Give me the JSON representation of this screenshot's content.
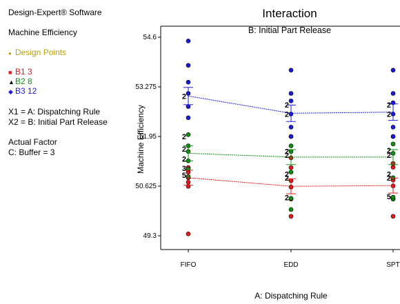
{
  "sidebar": {
    "software": "Design-Expert® Software",
    "response": "Machine Efficiency",
    "design_points_label": "Design Points",
    "design_points_color": "#b8a000",
    "legend": [
      {
        "label": "B1 3",
        "color": "#e8171b",
        "marker": "■"
      },
      {
        "label": "B2 8",
        "color": "#109010",
        "marker": "▲"
      },
      {
        "label": "B3 12",
        "color": "#1a1ae0",
        "marker": "◆"
      }
    ],
    "x1": "X1 = A: Dispatching Rule",
    "x2": "X2 = B: Initial Part Release",
    "actual_factor_title": "Actual Factor",
    "actual_factor_value": "C: Buffer = 3"
  },
  "chart_data": {
    "type": "line",
    "title": "Interaction",
    "subtitle": "B: Initial Part Release",
    "xlabel": "A: Dispatching Rule",
    "ylabel": "Machine Efficiency",
    "categories": [
      "FIFO",
      "EDD",
      "SPT"
    ],
    "yticks": [
      "49.3",
      "50.625",
      "51.95",
      "53.275",
      "54.6"
    ],
    "ylim": [
      49.0,
      55.0
    ],
    "series": [
      {
        "name": "B1 3",
        "color": "#e8171b",
        "values": [
          50.85,
          50.62,
          50.64
        ],
        "lsd_low": [
          50.65,
          50.42,
          50.44
        ],
        "lsd_high": [
          51.05,
          50.82,
          50.84
        ],
        "points": [
          [
            50.62,
            50.73,
            50.85,
            51.0,
            51.12,
            49.35
          ],
          [
            50.6,
            50.77,
            51.12,
            51.38,
            50.28,
            49.82
          ],
          [
            50.63,
            50.79,
            51.13,
            51.23,
            50.28,
            49.82
          ]
        ]
      },
      {
        "name": "B2 8",
        "color": "#109010",
        "values": [
          51.5,
          51.4,
          51.4
        ],
        "lsd_low": [
          51.3,
          51.2,
          51.2
        ],
        "lsd_high": [
          51.7,
          51.6,
          51.6
        ],
        "points": [
          [
            50.88,
            51.08,
            51.3,
            51.55,
            51.7,
            52.0
          ],
          [
            50.0,
            50.3,
            51.0,
            51.55,
            51.7,
            51.95
          ],
          [
            50.28,
            50.33,
            50.85,
            51.5,
            51.75,
            51.95
          ]
        ]
      },
      {
        "name": "B3 12",
        "color": "#1a1ae0",
        "values": [
          53.03,
          52.57,
          52.6
        ],
        "lsd_low": [
          52.8,
          52.35,
          52.38
        ],
        "lsd_high": [
          53.26,
          52.79,
          52.82
        ],
        "points": [
          [
            52.45,
            52.75,
            53.1,
            53.4,
            53.85,
            54.5
          ],
          [
            51.95,
            52.2,
            52.55,
            52.9,
            53.1,
            53.72
          ],
          [
            51.95,
            52.2,
            52.55,
            52.85,
            53.1,
            53.72
          ]
        ]
      }
    ],
    "count_labels": [
      {
        "cat": 0,
        "y": 53.03,
        "text": "2"
      },
      {
        "cat": 0,
        "y": 51.95,
        "text": "2"
      },
      {
        "cat": 0,
        "y": 51.62,
        "text": "2"
      },
      {
        "cat": 0,
        "y": 51.35,
        "text": "2"
      },
      {
        "cat": 0,
        "y": 51.1,
        "text": "3"
      },
      {
        "cat": 0,
        "y": 50.92,
        "text": "5"
      },
      {
        "cat": 1,
        "y": 52.8,
        "text": "2"
      },
      {
        "cat": 1,
        "y": 52.55,
        "text": "2"
      },
      {
        "cat": 1,
        "y": 51.55,
        "text": "2"
      },
      {
        "cat": 1,
        "y": 51.45,
        "text": "2"
      },
      {
        "cat": 1,
        "y": 50.95,
        "text": "2"
      },
      {
        "cat": 1,
        "y": 50.85,
        "text": "2"
      },
      {
        "cat": 1,
        "y": 50.32,
        "text": "2"
      },
      {
        "cat": 2,
        "y": 52.8,
        "text": "2"
      },
      {
        "cat": 2,
        "y": 52.55,
        "text": "2"
      },
      {
        "cat": 2,
        "y": 51.58,
        "text": "2"
      },
      {
        "cat": 2,
        "y": 51.45,
        "text": "2"
      },
      {
        "cat": 2,
        "y": 50.95,
        "text": "2"
      },
      {
        "cat": 2,
        "y": 50.85,
        "text": "2"
      },
      {
        "cat": 2,
        "y": 50.35,
        "text": "5"
      }
    ]
  }
}
